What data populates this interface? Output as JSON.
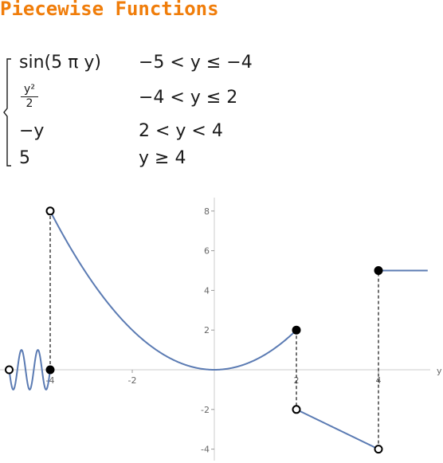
{
  "title": "Piecewise Functions",
  "piecewise": {
    "rows": [
      {
        "expr": "sin(5 π y)",
        "cond": "−5 < y ≤ −4"
      },
      {
        "expr_num": "y²",
        "expr_den": "2",
        "cond": "−4 < y ≤ 2"
      },
      {
        "expr": "−y",
        "cond": "2 < y < 4"
      },
      {
        "expr": "5",
        "cond": "y ≥ 4"
      }
    ]
  },
  "chart_data": {
    "type": "line",
    "xlabel": "y",
    "xlim": [
      -5.2,
      5.6
    ],
    "ylim": [
      -4.4,
      8.6
    ],
    "x_ticks": [
      "-4",
      "-2",
      "2",
      "4"
    ],
    "y_ticks": [
      "8",
      "6",
      "4",
      "2",
      "-2",
      "-4"
    ],
    "colors": {
      "curve": "#5b7bb3"
    },
    "pieces": [
      {
        "expr": "sin(5πy)",
        "x": [
          -5,
          -4
        ]
      },
      {
        "expr": "y^2/2",
        "x": [
          -4,
          2
        ]
      },
      {
        "expr": "-y",
        "x": [
          2,
          4
        ]
      },
      {
        "expr": "5",
        "x": [
          4,
          5.2
        ]
      }
    ],
    "points": [
      {
        "x": -5,
        "y": 0,
        "filled": false
      },
      {
        "x": -4,
        "y": 0,
        "filled": true
      },
      {
        "x": -4,
        "y": 8,
        "filled": false
      },
      {
        "x": 2,
        "y": 2,
        "filled": true
      },
      {
        "x": 2,
        "y": -2,
        "filled": false
      },
      {
        "x": 4,
        "y": -4,
        "filled": false
      },
      {
        "x": 4,
        "y": 5,
        "filled": true
      }
    ],
    "jumps": [
      {
        "x": -4,
        "y1": 0,
        "y2": 8
      },
      {
        "x": 2,
        "y1": 2,
        "y2": -2
      },
      {
        "x": 4,
        "y1": -4,
        "y2": 5
      }
    ]
  }
}
